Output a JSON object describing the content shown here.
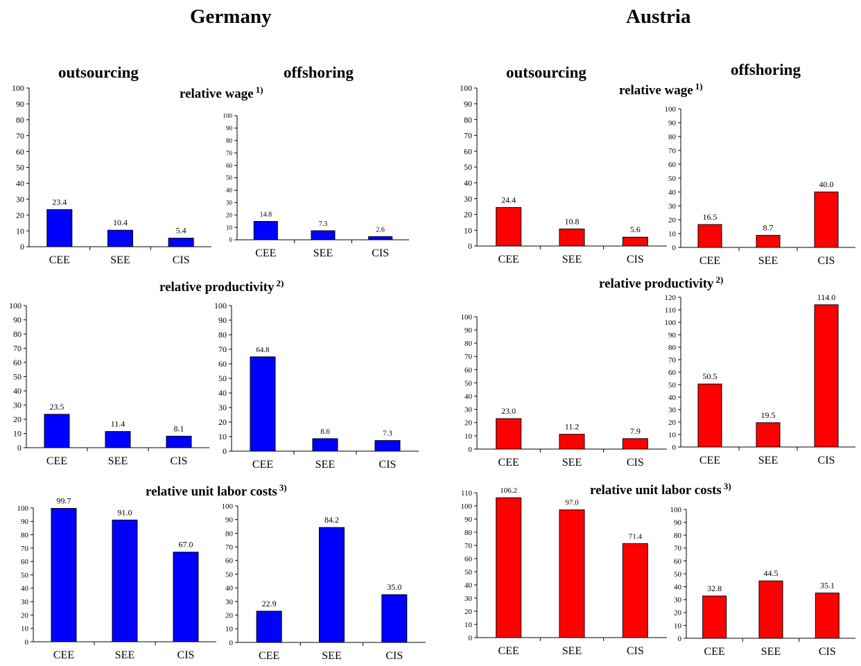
{
  "panels": {
    "germany": {
      "country": "Germany",
      "outsourcing": "outsourcing",
      "offshoring": "offshoring"
    },
    "austria": {
      "country": "Austria",
      "outsourcing": "outsourcing",
      "offshoring": "offshoring"
    }
  },
  "metrics": {
    "wage": {
      "label": "relative wage",
      "note": "1)"
    },
    "productivity": {
      "label": "relative productivity",
      "note": "2)"
    },
    "ulc": {
      "label": "relative unit labor costs",
      "note": "3)"
    }
  },
  "colors": {
    "germany": "#0000ff",
    "austria": "#ff0000"
  },
  "chart_data": [
    {
      "type": "bar",
      "country": "Germany",
      "mode": "outsourcing",
      "metric": "relative wage",
      "categories": [
        "CEE",
        "SEE",
        "CIS"
      ],
      "values": [
        23.4,
        10.4,
        5.4
      ],
      "value_labels": [
        "23.4",
        "10.4",
        "5.4"
      ],
      "ylim": [
        0,
        100
      ],
      "yticks": [
        0,
        10,
        20,
        30,
        40,
        50,
        60,
        70,
        80,
        90,
        100
      ]
    },
    {
      "type": "bar",
      "country": "Germany",
      "mode": "offshoring",
      "metric": "relative wage",
      "categories": [
        "CEE",
        "SEE",
        "CIS"
      ],
      "values": [
        14.8,
        7.3,
        2.6
      ],
      "value_labels": [
        "14.8",
        "7.3",
        "2.6"
      ],
      "ylim": [
        0,
        100
      ],
      "yticks": [
        0,
        10,
        20,
        30,
        40,
        50,
        60,
        70,
        80,
        90,
        100
      ]
    },
    {
      "type": "bar",
      "country": "Germany",
      "mode": "outsourcing",
      "metric": "relative productivity",
      "categories": [
        "CEE",
        "SEE",
        "CIS"
      ],
      "values": [
        23.5,
        11.4,
        8.1
      ],
      "value_labels": [
        "23.5",
        "11.4",
        "8.1"
      ],
      "ylim": [
        0,
        100
      ],
      "yticks": [
        0,
        10,
        20,
        30,
        40,
        50,
        60,
        70,
        80,
        90,
        100
      ]
    },
    {
      "type": "bar",
      "country": "Germany",
      "mode": "offshoring",
      "metric": "relative productivity",
      "categories": [
        "CEE",
        "SEE",
        "CIS"
      ],
      "values": [
        64.8,
        8.6,
        7.3
      ],
      "value_labels": [
        "64.8",
        "8.6",
        "7.3"
      ],
      "ylim": [
        0,
        100
      ],
      "yticks": [
        0,
        10,
        20,
        30,
        40,
        50,
        60,
        70,
        80,
        90,
        100
      ]
    },
    {
      "type": "bar",
      "country": "Germany",
      "mode": "outsourcing",
      "metric": "relative unit labor costs",
      "categories": [
        "CEE",
        "SEE",
        "CIS"
      ],
      "values": [
        99.7,
        91.0,
        67.0
      ],
      "value_labels": [
        "99.7",
        "91.0",
        "67.0"
      ],
      "ylim": [
        0,
        100
      ],
      "yticks": [
        0,
        10,
        20,
        30,
        40,
        50,
        60,
        70,
        80,
        90,
        100
      ]
    },
    {
      "type": "bar",
      "country": "Germany",
      "mode": "offshoring",
      "metric": "relative unit labor costs",
      "categories": [
        "CEE",
        "SEE",
        "CIS"
      ],
      "values": [
        22.9,
        84.2,
        35.0
      ],
      "value_labels": [
        "22.9",
        "84.2",
        "35.0"
      ],
      "ylim": [
        0,
        100
      ],
      "yticks": [
        0,
        10,
        20,
        30,
        40,
        50,
        60,
        70,
        80,
        90,
        100
      ]
    },
    {
      "type": "bar",
      "country": "Austria",
      "mode": "outsourcing",
      "metric": "relative wage",
      "categories": [
        "CEE",
        "SEE",
        "CIS"
      ],
      "values": [
        24.4,
        10.8,
        5.6
      ],
      "value_labels": [
        "24.4",
        "10.8",
        "5.6"
      ],
      "ylim": [
        0,
        100
      ],
      "yticks": [
        0,
        10,
        20,
        30,
        40,
        50,
        60,
        70,
        80,
        90,
        100
      ]
    },
    {
      "type": "bar",
      "country": "Austria",
      "mode": "offshoring",
      "metric": "relative wage",
      "categories": [
        "CEE",
        "SEE",
        "CIS"
      ],
      "values": [
        16.5,
        8.7,
        40.0
      ],
      "value_labels": [
        "16.5",
        "8.7",
        "40.0"
      ],
      "ylim": [
        0,
        100
      ],
      "yticks": [
        0,
        10,
        20,
        30,
        40,
        50,
        60,
        70,
        80,
        90,
        100
      ]
    },
    {
      "type": "bar",
      "country": "Austria",
      "mode": "outsourcing",
      "metric": "relative productivity",
      "categories": [
        "CEE",
        "SEE",
        "CIS"
      ],
      "values": [
        23.0,
        11.2,
        7.9
      ],
      "value_labels": [
        "23.0",
        "11.2",
        "7.9"
      ],
      "ylim": [
        0,
        100
      ],
      "yticks": [
        0,
        10,
        20,
        30,
        40,
        50,
        60,
        70,
        80,
        90,
        100
      ]
    },
    {
      "type": "bar",
      "country": "Austria",
      "mode": "offshoring",
      "metric": "relative productivity",
      "categories": [
        "CEE",
        "SEE",
        "CIS"
      ],
      "values": [
        50.5,
        19.5,
        114.0
      ],
      "value_labels": [
        "50.5",
        "19.5",
        "114.0"
      ],
      "ylim": [
        0,
        120
      ],
      "yticks": [
        0,
        10,
        20,
        30,
        40,
        50,
        60,
        70,
        80,
        90,
        100,
        110,
        120
      ]
    },
    {
      "type": "bar",
      "country": "Austria",
      "mode": "outsourcing",
      "metric": "relative unit labor costs",
      "categories": [
        "CEE",
        "SEE",
        "CIS"
      ],
      "values": [
        106.2,
        97.0,
        71.4
      ],
      "value_labels": [
        "106.2",
        "97.0",
        "71.4"
      ],
      "ylim": [
        0,
        110
      ],
      "yticks": [
        0,
        10,
        20,
        30,
        40,
        50,
        60,
        70,
        80,
        90,
        100,
        110
      ]
    },
    {
      "type": "bar",
      "country": "Austria",
      "mode": "offshoring",
      "metric": "relative unit labor costs",
      "categories": [
        "CEE",
        "SEE",
        "CIS"
      ],
      "values": [
        32.8,
        44.5,
        35.1
      ],
      "value_labels": [
        "32.8",
        "44.5",
        "35.1"
      ],
      "ylim": [
        0,
        100
      ],
      "yticks": [
        0,
        10,
        20,
        30,
        40,
        50,
        60,
        70,
        80,
        90,
        100
      ]
    }
  ]
}
